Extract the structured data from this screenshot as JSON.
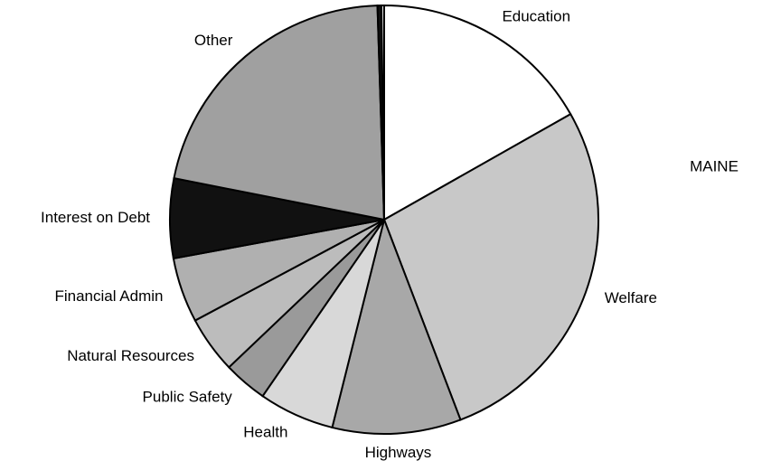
{
  "chart_data": {
    "type": "pie",
    "title": "MAINE",
    "categories": [
      "Education",
      "Welfare",
      "Highways",
      "Health",
      "Public Safety",
      "Natural Resources",
      "Financial Admin",
      "Interest on Debt",
      "Other",
      null,
      null
    ],
    "values": [
      16.8,
      27.4,
      9.7,
      5.7,
      3.3,
      4.3,
      4.9,
      6.0,
      21.4,
      0.3,
      0.2
    ],
    "colors": [
      "#ffffff",
      "#c8c8c8",
      "#a8a8a8",
      "#d8d8d8",
      "#9a9a9a",
      "#bcbcbc",
      "#b0b0b0",
      "#111111",
      "#a0a0a0",
      "#111111",
      "#ffffff"
    ]
  }
}
